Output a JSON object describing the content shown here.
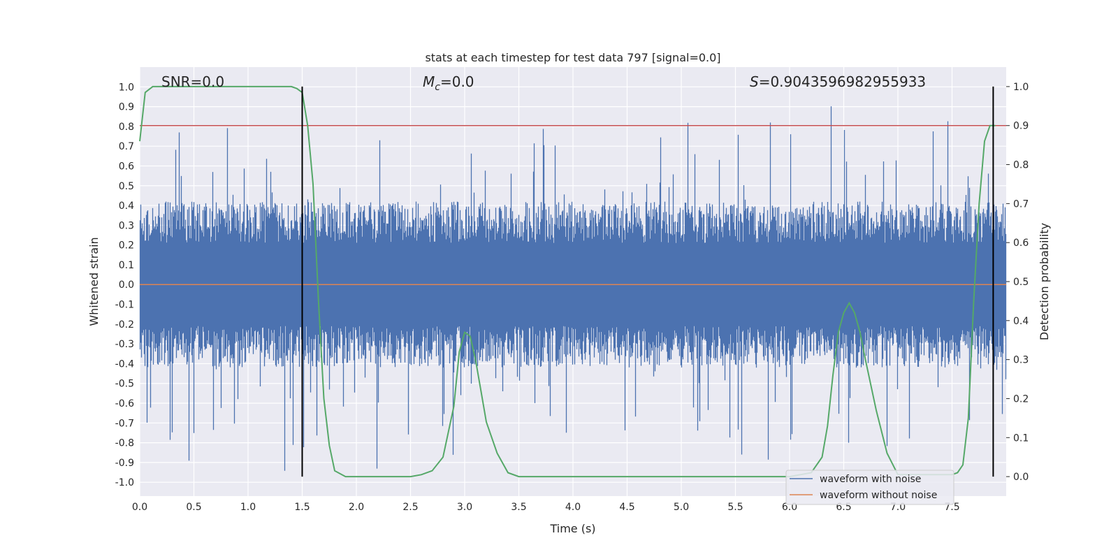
{
  "chart_data": {
    "type": "line",
    "title": "stats at each timestep for test data 797 [signal=0.0]",
    "xlabel": "Time (s)",
    "ylabel": "Whitened strain",
    "y2label": "Detection probability",
    "xlim": [
      0.0,
      8.0
    ],
    "ylim": [
      -1.07,
      1.1
    ],
    "y2lim": [
      -0.05,
      1.05
    ],
    "xticks": [
      "0.0",
      "0.5",
      "1.0",
      "1.5",
      "2.0",
      "2.5",
      "3.0",
      "3.5",
      "4.0",
      "4.5",
      "5.0",
      "5.5",
      "6.0",
      "6.5",
      "7.0",
      "7.5"
    ],
    "yticks": [
      "-1.0",
      "-0.9",
      "-0.8",
      "-0.7",
      "-0.6",
      "-0.5",
      "-0.4",
      "-0.3",
      "-0.2",
      "-0.1",
      "0.0",
      "0.1",
      "0.2",
      "0.3",
      "0.4",
      "0.5",
      "0.6",
      "0.7",
      "0.8",
      "0.9",
      "1.0"
    ],
    "y2ticks": [
      "0.0",
      "0.1",
      "0.2",
      "0.3",
      "0.4",
      "0.5",
      "0.6",
      "0.7",
      "0.8",
      "0.9",
      "1.0"
    ],
    "annotations": {
      "snr": "SNR=0.0",
      "mc_symbol": "M",
      "mc_sub": "c",
      "mc_value": "=0.0",
      "s_symbol": "S",
      "s_value": "=0.9043596982955933"
    },
    "threshold": {
      "value": 0.9,
      "axis": "y2",
      "color": "#c44e52"
    },
    "vlines": [
      1.5,
      7.88
    ],
    "legend": {
      "position": "lower-right",
      "entries": [
        {
          "name": "waveform with noise",
          "color": "#4c72b0"
        },
        {
          "name": "waveform without noise",
          "color": "#dd8452"
        }
      ]
    },
    "series": [
      {
        "name": "waveform with noise",
        "axis": "y",
        "color": "#4c72b0",
        "style": "dense-noise",
        "envelope_typical": 0.42,
        "peaks_max": [
          0.98,
          -0.97
        ]
      },
      {
        "name": "waveform without noise",
        "axis": "y",
        "color": "#dd8452",
        "value": 0.0
      },
      {
        "name": "Detection probability",
        "axis": "y2",
        "color": "#55a868",
        "x": [
          0.0,
          0.05,
          0.12,
          0.2,
          0.5,
          1.0,
          1.4,
          1.45,
          1.5,
          1.55,
          1.6,
          1.65,
          1.7,
          1.75,
          1.8,
          1.9,
          2.0,
          2.5,
          2.6,
          2.7,
          2.8,
          2.9,
          2.95,
          3.0,
          3.05,
          3.1,
          3.15,
          3.2,
          3.3,
          3.4,
          3.5,
          4.0,
          5.0,
          6.0,
          6.2,
          6.3,
          6.35,
          6.4,
          6.45,
          6.5,
          6.55,
          6.6,
          6.65,
          6.7,
          6.8,
          6.9,
          7.0,
          7.5,
          7.55,
          7.6,
          7.65,
          7.7,
          7.75,
          7.8,
          7.85,
          7.9
        ],
        "y": [
          0.86,
          0.985,
          1.0,
          1.0,
          1.0,
          1.0,
          1.0,
          0.995,
          0.985,
          0.9,
          0.75,
          0.45,
          0.2,
          0.08,
          0.015,
          0.0,
          0.0,
          0.0,
          0.005,
          0.015,
          0.05,
          0.18,
          0.32,
          0.37,
          0.36,
          0.3,
          0.22,
          0.14,
          0.06,
          0.01,
          0.0,
          0.0,
          0.0,
          0.0,
          0.01,
          0.05,
          0.13,
          0.26,
          0.37,
          0.42,
          0.445,
          0.42,
          0.37,
          0.3,
          0.17,
          0.06,
          0.005,
          0.005,
          0.01,
          0.03,
          0.15,
          0.45,
          0.7,
          0.86,
          0.9,
          0.9
        ]
      }
    ]
  }
}
